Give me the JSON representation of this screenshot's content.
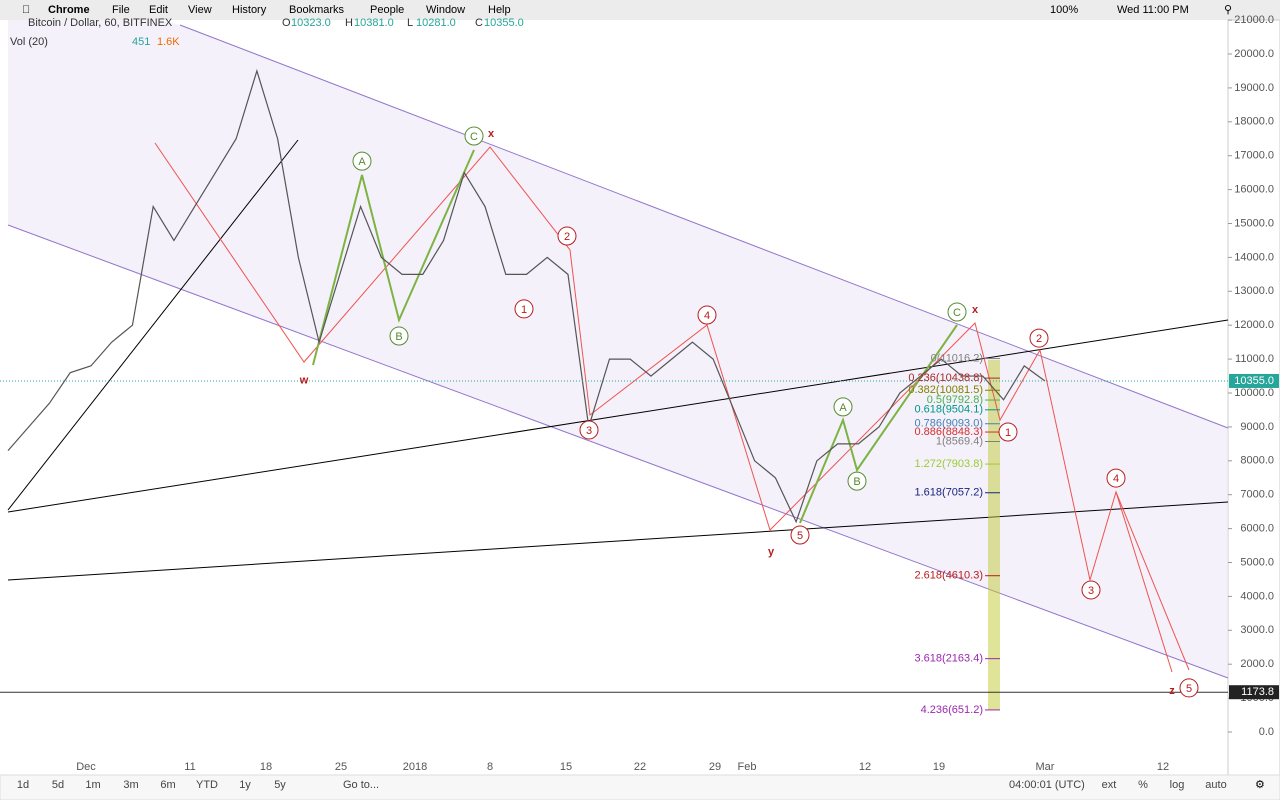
{
  "menu_bar": {
    "app": "Chrome",
    "items": [
      "File",
      "Edit",
      "View",
      "History",
      "Bookmarks",
      "People",
      "Window",
      "Help"
    ],
    "battery": "100%",
    "clock": "Wed 11:00 PM"
  },
  "header": {
    "symbol": "Bitcoin / Dollar, 60, BITFINEX",
    "ohlc": [
      {
        "key": "O",
        "value": "10323.0"
      },
      {
        "key": "H",
        "value": "10381.0"
      },
      {
        "key": "L",
        "value": "10281.0"
      },
      {
        "key": "C",
        "value": "10355.0"
      }
    ],
    "volume": {
      "label": "Vol (20)",
      "value": "451",
      "ma": "1.6K"
    }
  },
  "chart": {
    "yticks": [
      {
        "value": 0,
        "label": "0.0"
      },
      {
        "value": 1000,
        "label": "1000.0"
      },
      {
        "value": 2000,
        "label": "2000.0"
      },
      {
        "value": 3000,
        "label": "3000.0"
      },
      {
        "value": 4000,
        "label": "4000.0"
      },
      {
        "value": 5000,
        "label": "5000.0"
      },
      {
        "value": 6000,
        "label": "6000.0"
      },
      {
        "value": 7000,
        "label": "7000.0"
      },
      {
        "value": 8000,
        "label": "8000.0"
      },
      {
        "value": 9000,
        "label": "9000.0"
      },
      {
        "value": 10000,
        "label": "10000.0"
      },
      {
        "value": 11000,
        "label": "11000.0"
      },
      {
        "value": 12000,
        "label": "12000.0"
      },
      {
        "value": 13000,
        "label": "13000.0"
      },
      {
        "value": 14000,
        "label": "14000.0"
      },
      {
        "value": 15000,
        "label": "15000.0"
      },
      {
        "value": 16000,
        "label": "16000.0"
      },
      {
        "value": 17000,
        "label": "17000.0"
      },
      {
        "value": 18000,
        "label": "18000.0"
      },
      {
        "value": 19000,
        "label": "19000.0"
      },
      {
        "value": 20000,
        "label": "20000.0"
      },
      {
        "value": 21000,
        "label": "21000.0"
      }
    ],
    "xlabels": [
      "Dec",
      "11",
      "18",
      "25",
      "2018",
      "8",
      "15",
      "22",
      "29",
      "Feb",
      "12",
      "19",
      "Mar",
      "12"
    ],
    "price": [
      8300,
      9000,
      9700,
      10600,
      10800,
      11500,
      12000,
      15500,
      14500,
      15500,
      16500,
      17500,
      19500,
      17500,
      14000,
      11500,
      13500,
      15500,
      14000,
      13500,
      13500,
      14500,
      16500,
      15500,
      13500,
      13500,
      14000,
      13500,
      9000,
      11000,
      11000,
      10500,
      11000,
      11500,
      11000,
      9500,
      8000,
      7500,
      6200,
      8000,
      8500,
      8500,
      9000,
      10000,
      10500,
      11000,
      10500,
      10500,
      9800,
      10800,
      10355
    ],
    "last_price": {
      "value": 10355,
      "label": "10355.0"
    },
    "line_price": {
      "value": 1173.8,
      "label": "1173.8"
    },
    "fib_levels": [
      {
        "label": "0(11016.2)",
        "value": 11016.2,
        "color": "#808080"
      },
      {
        "label": "0.236(10438.8)",
        "value": 10438.8,
        "color": "#a52a2a"
      },
      {
        "label": "0.382(10081.5)",
        "value": 10081.5,
        "color": "#808000"
      },
      {
        "label": "0.5(9792.8)",
        "value": 9792.8,
        "color": "#4caf50"
      },
      {
        "label": "0.618(9504.1)",
        "value": 9504.1,
        "color": "#009688"
      },
      {
        "label": "0.786(9093.0)",
        "value": 9093.0,
        "color": "#4682b4"
      },
      {
        "label": "0.886(8848.3)",
        "value": 8848.3,
        "color": "#d32f2f"
      },
      {
        "label": "1(8569.4)",
        "value": 8569.4,
        "color": "#808080"
      },
      {
        "label": "1.272(7903.8)",
        "value": 7903.8,
        "color": "#9acd32"
      },
      {
        "label": "1.618(7057.2)",
        "value": 7057.2,
        "color": "#1a237e"
      },
      {
        "label": "2.618(4610.3)",
        "value": 4610.3,
        "color": "#b71c1c"
      },
      {
        "label": "3.618(2163.4)",
        "value": 2163.4,
        "color": "#9c27b0"
      },
      {
        "label": "4.236(651.2)",
        "value": 651.2,
        "color": "#9c27b0"
      }
    ],
    "waves": [
      {
        "label": "w",
        "price": 10400,
        "color": "#b71c1c",
        "circled": false
      },
      {
        "label": "A",
        "price": 16840,
        "color": "#558b2f",
        "circled": true
      },
      {
        "label": "B",
        "price": 11680,
        "color": "#558b2f",
        "circled": true
      },
      {
        "label": "C",
        "price": 17580,
        "color": "#558b2f",
        "circled": true
      },
      {
        "label": "x",
        "price": 17670,
        "color": "#b71c1c",
        "circled": false
      },
      {
        "label": "1",
        "price": 12480,
        "color": "#b71c1c",
        "circled": true
      },
      {
        "label": "2",
        "price": 14630,
        "color": "#b71c1c",
        "circled": true
      },
      {
        "label": "3",
        "price": 8910,
        "color": "#b71c1c",
        "circled": true
      },
      {
        "label": "4",
        "price": 12300,
        "color": "#b71c1c",
        "circled": true
      },
      {
        "label": "5",
        "price": 5810,
        "color": "#b71c1c",
        "circled": true
      },
      {
        "label": "y",
        "price": 5340,
        "color": "#b71c1c",
        "circled": false
      },
      {
        "label": "A",
        "price": 9590,
        "color": "#558b2f",
        "circled": true
      },
      {
        "label": "B",
        "price": 7400,
        "color": "#558b2f",
        "circled": true
      },
      {
        "label": "C",
        "price": 12390,
        "color": "#558b2f",
        "circled": true
      },
      {
        "label": "x",
        "price": 12480,
        "color": "#b71c1c",
        "circled": false
      },
      {
        "label": "1",
        "price": 8850,
        "color": "#b71c1c",
        "circled": true
      },
      {
        "label": "2",
        "price": 11620,
        "color": "#b71c1c",
        "circled": true
      },
      {
        "label": "3",
        "price": 4190,
        "color": "#b71c1c",
        "circled": true
      },
      {
        "label": "4",
        "price": 7490,
        "color": "#b71c1c",
        "circled": true
      },
      {
        "label": "z",
        "price": 1240,
        "color": "#b71c1c",
        "circled": false
      },
      {
        "label": "5",
        "price": 1300,
        "color": "#b71c1c",
        "circled": true
      }
    ]
  },
  "toolbar": {
    "ranges": [
      "1d",
      "5d",
      "1m",
      "3m",
      "6m",
      "YTD",
      "1y",
      "5y"
    ],
    "goto": "Go to...",
    "clock": "04:00:01 (UTC)",
    "options": [
      "ext",
      "%",
      "log",
      "auto"
    ]
  }
}
